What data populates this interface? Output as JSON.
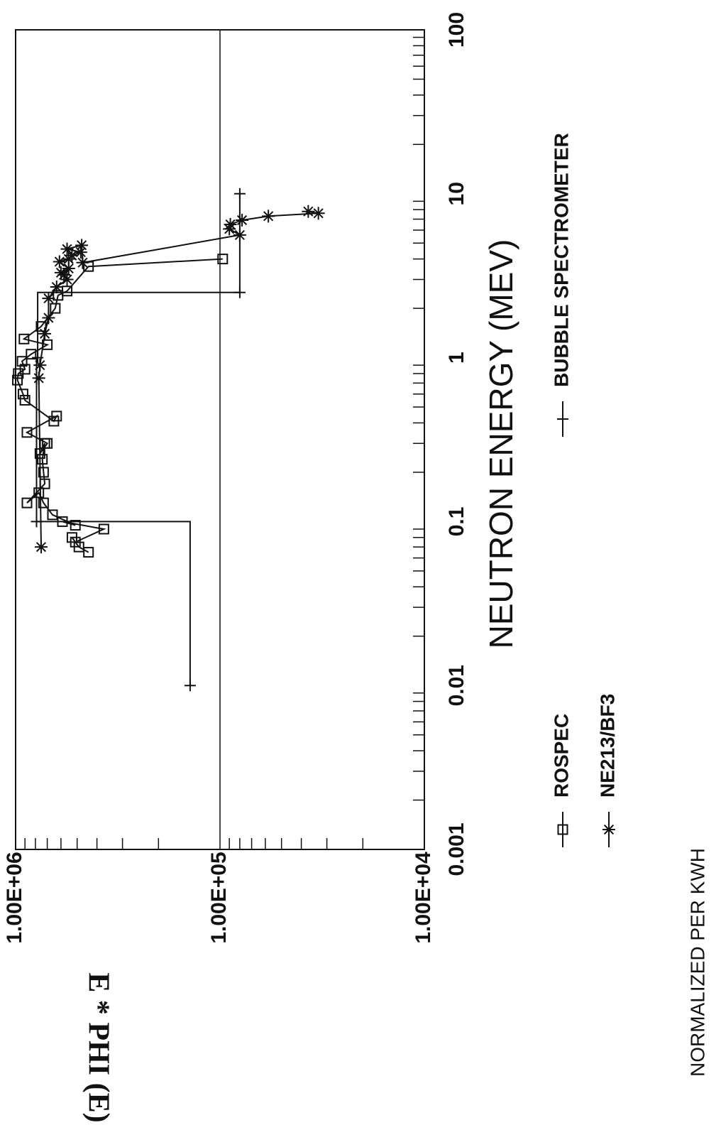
{
  "chart_data": {
    "type": "scatter",
    "xlabel": "NEUTRON ENERGY (MEV)",
    "ylabel": "E * PHI (E)",
    "note": "NORMALIZED PER KWH",
    "x_scale": "log",
    "y_scale": "log",
    "xlim": [
      0.001,
      100
    ],
    "ylim": [
      10000,
      1000000
    ],
    "x_ticks": [
      "0.001",
      "0.01",
      "0.1",
      "1",
      "10",
      "100"
    ],
    "y_ticks": [
      "1.00E+04",
      "1.00E+05",
      "1.00E+06"
    ],
    "grid": "horizontal at 1.00E+05",
    "legend_placement": "bottom",
    "series": [
      {
        "name": "ROSPEC",
        "marker": "square",
        "points": [
          [
            0.065,
            440000
          ],
          [
            0.07,
            490000
          ],
          [
            0.08,
            530000
          ],
          [
            0.075,
            510000
          ],
          [
            0.09,
            370000
          ],
          [
            0.1,
            590000
          ],
          [
            0.095,
            510000
          ],
          [
            0.11,
            660000
          ],
          [
            0.13,
            730000
          ],
          [
            0.15,
            770000
          ],
          [
            0.13,
            880000
          ],
          [
            0.17,
            720000
          ],
          [
            0.2,
            730000
          ],
          [
            0.24,
            740000
          ],
          [
            0.3,
            720000
          ],
          [
            0.26,
            760000
          ],
          [
            0.3,
            700000
          ],
          [
            0.35,
            880000
          ],
          [
            0.44,
            630000
          ],
          [
            0.41,
            650000
          ],
          [
            0.55,
            900000
          ],
          [
            0.6,
            920000
          ],
          [
            0.73,
            980000
          ],
          [
            0.8,
            970000
          ],
          [
            0.85,
            900000
          ],
          [
            0.95,
            930000
          ],
          [
            1.05,
            840000
          ],
          [
            1.2,
            700000
          ],
          [
            1.3,
            910000
          ],
          [
            1.55,
            750000
          ],
          [
            2.0,
            640000
          ],
          [
            2.4,
            620000
          ],
          [
            2.55,
            560000
          ],
          [
            3.6,
            440000
          ],
          [
            4.0,
            97000
          ]
        ]
      },
      {
        "name": "NE213/BF3",
        "marker": "asterisk",
        "points": [
          [
            0.07,
            750000
          ],
          [
            0.75,
            770000
          ],
          [
            0.9,
            760000
          ],
          [
            1.4,
            720000
          ],
          [
            1.75,
            690000
          ],
          [
            2.3,
            690000
          ],
          [
            2.7,
            630000
          ],
          [
            3.0,
            560000
          ],
          [
            3.2,
            580000
          ],
          [
            3.3,
            600000
          ],
          [
            3.5,
            550000
          ],
          [
            3.85,
            610000
          ],
          [
            4.0,
            550000
          ],
          [
            4.2,
            530000
          ],
          [
            4.4,
            480000
          ],
          [
            4.6,
            560000
          ],
          [
            4.85,
            475000
          ],
          [
            3.8,
            470000
          ],
          [
            5.6,
            80000
          ],
          [
            6.1,
            90000
          ],
          [
            6.5,
            89000
          ],
          [
            6.9,
            78000
          ],
          [
            7.3,
            58000
          ],
          [
            7.6,
            33000
          ],
          [
            7.8,
            37000
          ]
        ]
      },
      {
        "name": "BUBBLE SPECTROMETER",
        "marker": "plus",
        "bins": [
          {
            "x_range": [
              0.01,
              0.1
            ],
            "y": 140000
          },
          {
            "x_range": [
              0.1,
              1.0
            ],
            "y": 790000
          },
          {
            "x_range": [
              1.0,
              2.5
            ],
            "y": 780000
          },
          {
            "x_range": [
              2.5,
              10.0
            ],
            "y": 80000
          }
        ]
      }
    ]
  }
}
